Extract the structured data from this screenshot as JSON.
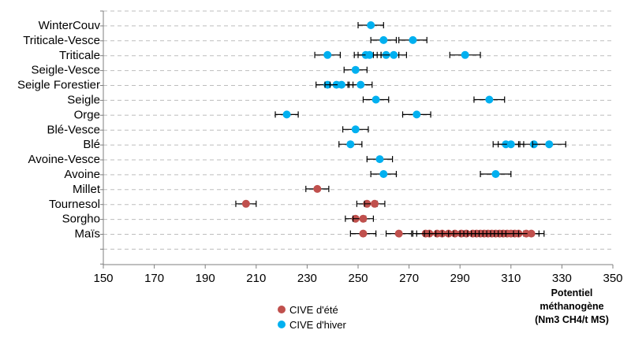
{
  "chart_data": {
    "type": "scatter",
    "categories": [
      "WinterCouv",
      "Triticale-Vesce",
      "Triticale",
      "Seigle-Vesce",
      "Seigle Forestier",
      "Seigle",
      "Orge",
      "Blé-Vesce",
      "Blé",
      "Avoine-Vesce",
      "Avoine",
      "Millet",
      "Tournesol",
      "Sorgho",
      "Maïs"
    ],
    "xlabel": [
      "Potentiel",
      "méthanogène",
      "(Nm3 CH4/t MS)"
    ],
    "xlim": [
      150,
      350
    ],
    "xticks": [
      150,
      170,
      190,
      210,
      230,
      250,
      270,
      290,
      310,
      330,
      350
    ],
    "grid": "horizontal-dashed",
    "legend_position": "bottom-left",
    "series": [
      {
        "name": "CIVE d'été",
        "color": "#C0504D",
        "points": [
          {
            "category": "Millet",
            "x": 234,
            "err": 4.5
          },
          {
            "category": "Tournesol",
            "x": 206,
            "err": 4
          },
          {
            "category": "Tournesol",
            "x": 253.5,
            "err": 4
          },
          {
            "category": "Tournesol",
            "x": 256.5,
            "err": 4
          },
          {
            "category": "Sorgho",
            "x": 249,
            "err": 4
          },
          {
            "category": "Sorgho",
            "x": 252,
            "err": 4
          },
          {
            "category": "Maïs",
            "x": 252,
            "err": 5
          },
          {
            "category": "Maïs",
            "x": 266,
            "err": 5
          },
          {
            "category": "Maïs",
            "x": 276.5,
            "err": 5
          },
          {
            "category": "Maïs",
            "x": 278,
            "err": 5
          },
          {
            "category": "Maïs",
            "x": 281,
            "err": 5
          },
          {
            "category": "Maïs",
            "x": 283,
            "err": 5
          },
          {
            "category": "Maïs",
            "x": 285.5,
            "err": 5
          },
          {
            "category": "Maïs",
            "x": 288,
            "err": 5
          },
          {
            "category": "Maïs",
            "x": 290.5,
            "err": 5
          },
          {
            "category": "Maïs",
            "x": 292.5,
            "err": 5
          },
          {
            "category": "Maïs",
            "x": 295,
            "err": 5
          },
          {
            "category": "Maïs",
            "x": 296.5,
            "err": 5
          },
          {
            "category": "Maïs",
            "x": 298,
            "err": 5
          },
          {
            "category": "Maïs",
            "x": 299.5,
            "err": 5
          },
          {
            "category": "Maïs",
            "x": 301,
            "err": 5
          },
          {
            "category": "Maïs",
            "x": 302.5,
            "err": 5
          },
          {
            "category": "Maïs",
            "x": 304,
            "err": 5
          },
          {
            "category": "Maïs",
            "x": 305.5,
            "err": 5
          },
          {
            "category": "Maïs",
            "x": 307,
            "err": 5
          },
          {
            "category": "Maïs",
            "x": 308.5,
            "err": 5
          },
          {
            "category": "Maïs",
            "x": 310,
            "err": 5
          },
          {
            "category": "Maïs",
            "x": 311.5,
            "err": 5
          },
          {
            "category": "Maïs",
            "x": 313,
            "err": 5
          },
          {
            "category": "Maïs",
            "x": 316,
            "err": 5
          },
          {
            "category": "Maïs",
            "x": 318,
            "err": 5
          }
        ]
      },
      {
        "name": "CIVE d'hiver",
        "color": "#00B0F0",
        "points": [
          {
            "category": "WinterCouv",
            "x": 255,
            "err": 5
          },
          {
            "category": "Triticale-Vesce",
            "x": 260,
            "err": 5
          },
          {
            "category": "Triticale-Vesce",
            "x": 271.5,
            "err": 5.5
          },
          {
            "category": "Triticale",
            "x": 238,
            "err": 5
          },
          {
            "category": "Triticale",
            "x": 253,
            "err": 4.5
          },
          {
            "category": "Triticale",
            "x": 254.5,
            "err": 4.5
          },
          {
            "category": "Triticale",
            "x": 261,
            "err": 5
          },
          {
            "category": "Triticale",
            "x": 264,
            "err": 5
          },
          {
            "category": "Triticale",
            "x": 292,
            "err": 6
          },
          {
            "category": "Seigle-Vesce",
            "x": 249,
            "err": 4.5
          },
          {
            "category": "Seigle Forestier",
            "x": 238,
            "err": 4.5
          },
          {
            "category": "Seigle Forestier",
            "x": 241.5,
            "err": 4.5
          },
          {
            "category": "Seigle Forestier",
            "x": 243.5,
            "err": 4.5
          },
          {
            "category": "Seigle Forestier",
            "x": 251,
            "err": 4.5
          },
          {
            "category": "Seigle",
            "x": 257,
            "err": 5
          },
          {
            "category": "Seigle",
            "x": 301.5,
            "err": 6
          },
          {
            "category": "Orge",
            "x": 222,
            "err": 4.5
          },
          {
            "category": "Orge",
            "x": 273,
            "err": 5.5
          },
          {
            "category": "Blé-Vesce",
            "x": 249,
            "err": 5
          },
          {
            "category": "Blé",
            "x": 247,
            "err": 4.5
          },
          {
            "category": "Blé",
            "x": 308,
            "err": 5
          },
          {
            "category": "Blé",
            "x": 310,
            "err": 5
          },
          {
            "category": "Blé",
            "x": 319,
            "err": 5.5
          },
          {
            "category": "Blé",
            "x": 325,
            "err": 6.5
          },
          {
            "category": "Avoine-Vesce",
            "x": 258.5,
            "err": 5
          },
          {
            "category": "Avoine",
            "x": 260,
            "err": 5
          },
          {
            "category": "Avoine",
            "x": 304,
            "err": 6
          }
        ]
      }
    ]
  }
}
